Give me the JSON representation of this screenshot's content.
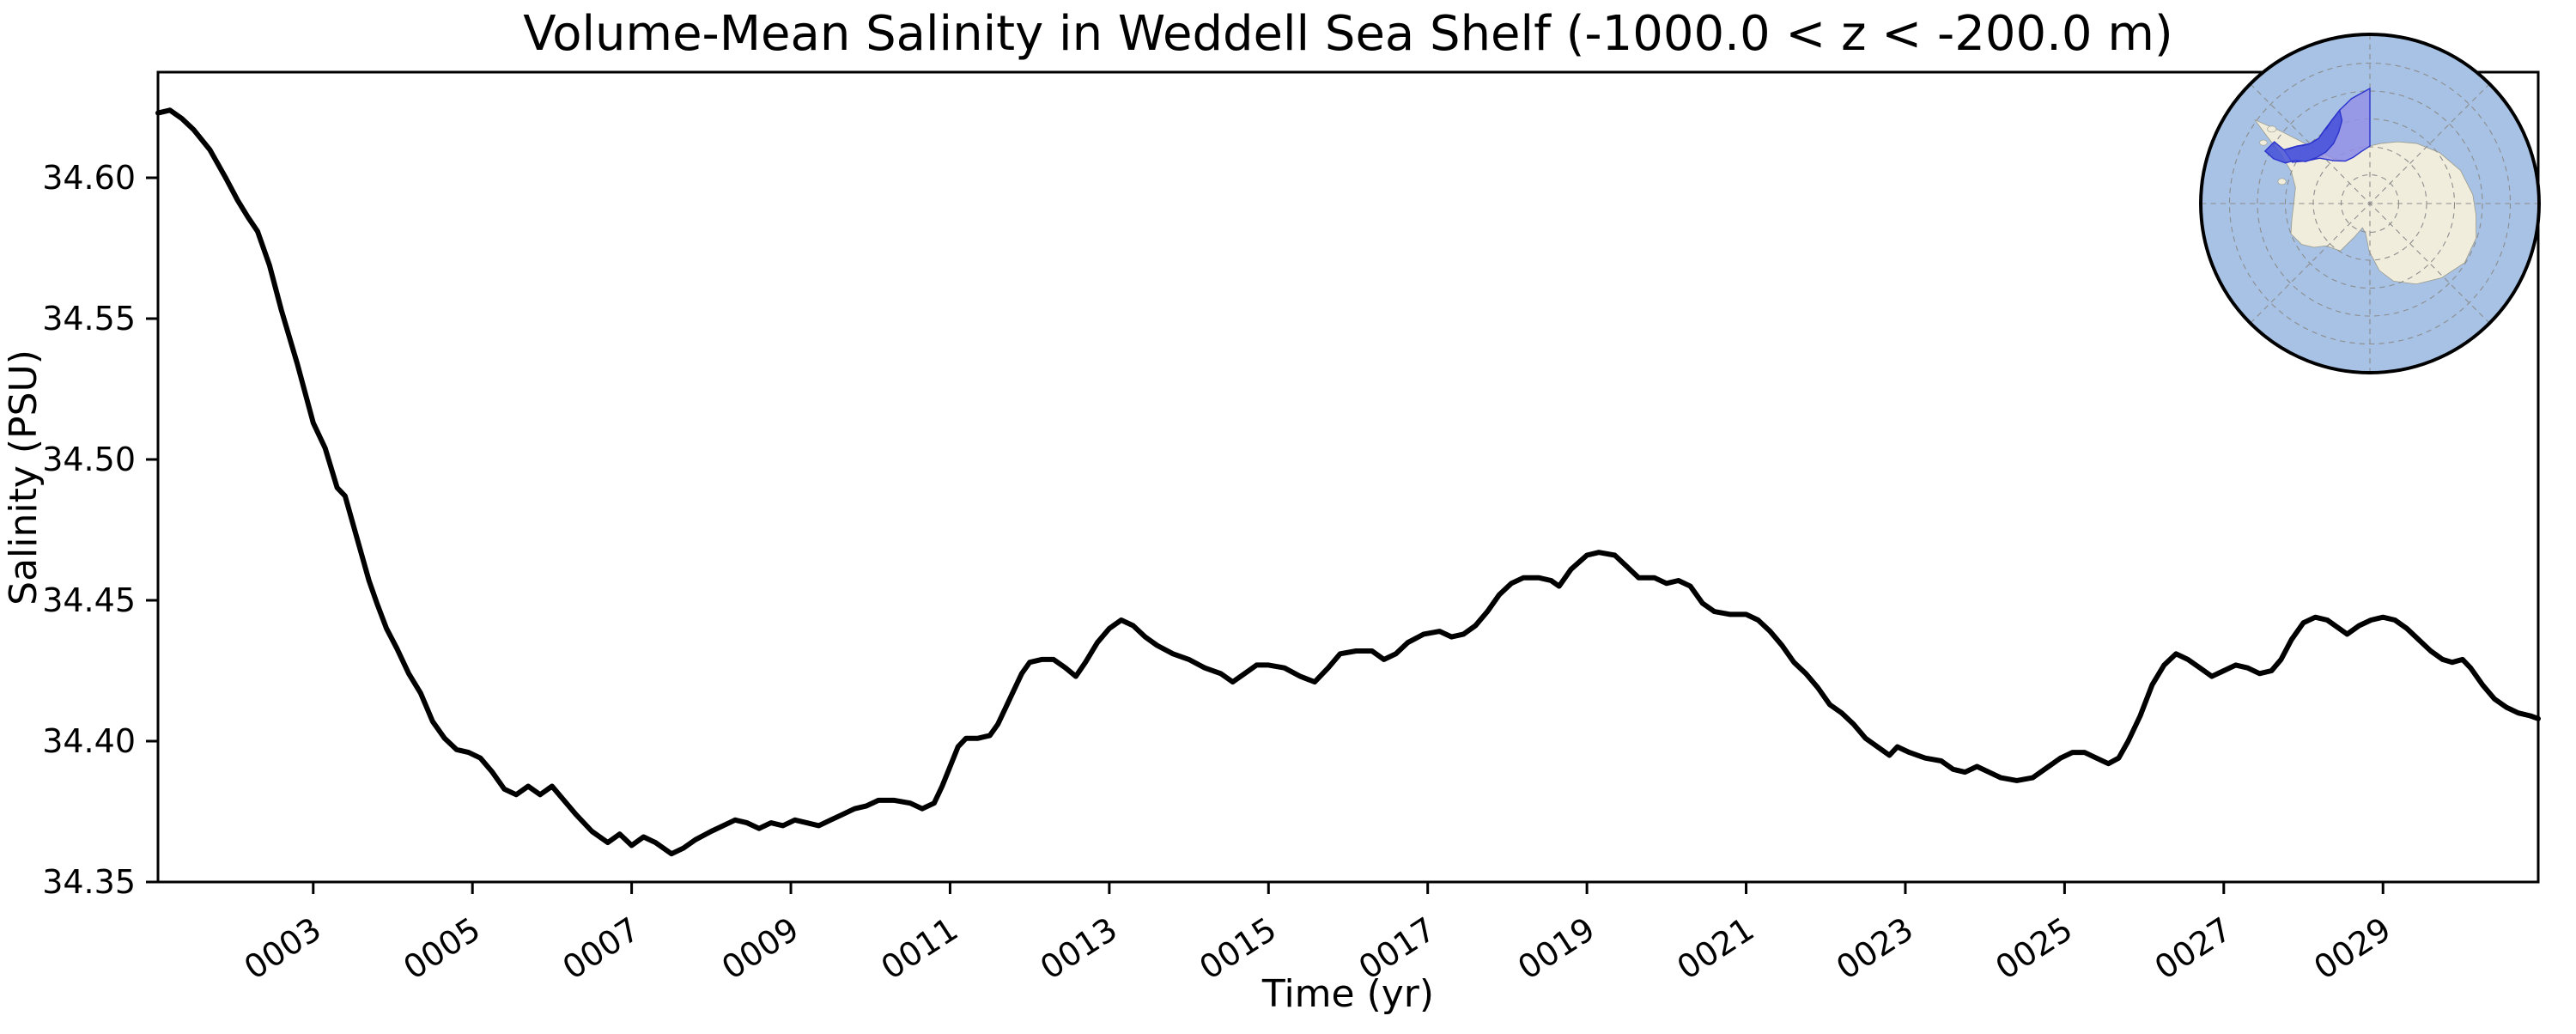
{
  "chart_data": {
    "type": "line",
    "title": "Volume-Mean Salinity in Weddell Sea Shelf (-1000.0 < z < -200.0 m)",
    "xlabel": "Time (yr)",
    "ylabel": "Salinity (PSU)",
    "xlim": [
      1.05,
      30.95
    ],
    "ylim": [
      34.35,
      34.6375
    ],
    "grid": false,
    "legend_position": "none",
    "line_color": "#000000",
    "line_width": 6,
    "x_ticks": [
      {
        "year": 3,
        "label": "0003"
      },
      {
        "year": 5,
        "label": "0005"
      },
      {
        "year": 7,
        "label": "0007"
      },
      {
        "year": 9,
        "label": "0009"
      },
      {
        "year": 11,
        "label": "0011"
      },
      {
        "year": 13,
        "label": "0013"
      },
      {
        "year": 15,
        "label": "0015"
      },
      {
        "year": 17,
        "label": "0017"
      },
      {
        "year": 19,
        "label": "0019"
      },
      {
        "year": 21,
        "label": "0021"
      },
      {
        "year": 23,
        "label": "0023"
      },
      {
        "year": 25,
        "label": "0025"
      },
      {
        "year": 27,
        "label": "0027"
      },
      {
        "year": 29,
        "label": "0029"
      }
    ],
    "y_ticks": [
      {
        "value": 34.35,
        "label": "34.35"
      },
      {
        "value": 34.4,
        "label": "34.40"
      },
      {
        "value": 34.45,
        "label": "34.45"
      },
      {
        "value": 34.5,
        "label": "34.50"
      },
      {
        "value": 34.55,
        "label": "34.55"
      },
      {
        "value": 34.6,
        "label": "34.60"
      }
    ],
    "series": [
      {
        "name": "volume-mean-salinity",
        "x": [
          1.05,
          1.2,
          1.35,
          1.5,
          1.7,
          1.9,
          2.05,
          2.18,
          2.3,
          2.45,
          2.6,
          2.8,
          3.0,
          3.15,
          3.3,
          3.4,
          3.55,
          3.7,
          3.8,
          3.92,
          4.05,
          4.2,
          4.35,
          4.5,
          4.65,
          4.8,
          4.95,
          5.1,
          5.25,
          5.4,
          5.55,
          5.7,
          5.85,
          6.0,
          6.15,
          6.3,
          6.5,
          6.7,
          6.85,
          7.0,
          7.15,
          7.3,
          7.5,
          7.65,
          7.8,
          8.0,
          8.15,
          8.3,
          8.45,
          8.6,
          8.75,
          8.9,
          9.05,
          9.2,
          9.35,
          9.5,
          9.65,
          9.8,
          9.95,
          10.1,
          10.3,
          10.5,
          10.65,
          10.8,
          10.9,
          11.0,
          11.1,
          11.2,
          11.35,
          11.5,
          11.6,
          11.75,
          11.9,
          12.0,
          12.15,
          12.3,
          12.45,
          12.58,
          12.7,
          12.85,
          13.0,
          13.15,
          13.3,
          13.45,
          13.6,
          13.8,
          14.0,
          14.2,
          14.4,
          14.55,
          14.7,
          14.85,
          15.0,
          15.2,
          15.4,
          15.58,
          15.75,
          15.9,
          16.1,
          16.3,
          16.45,
          16.6,
          16.75,
          16.95,
          17.15,
          17.3,
          17.45,
          17.6,
          17.75,
          17.9,
          18.05,
          18.2,
          18.4,
          18.55,
          18.65,
          18.8,
          19.0,
          19.15,
          19.35,
          19.5,
          19.65,
          19.85,
          20.0,
          20.15,
          20.3,
          20.45,
          20.6,
          20.8,
          21.0,
          21.15,
          21.3,
          21.45,
          21.6,
          21.75,
          21.9,
          22.05,
          22.2,
          22.35,
          22.5,
          22.65,
          22.8,
          22.9,
          23.05,
          23.25,
          23.45,
          23.6,
          23.75,
          23.9,
          24.05,
          24.2,
          24.4,
          24.6,
          24.8,
          24.95,
          25.1,
          25.25,
          25.4,
          25.55,
          25.68,
          25.8,
          25.95,
          26.1,
          26.25,
          26.4,
          26.55,
          26.7,
          26.85,
          27.0,
          27.15,
          27.3,
          27.45,
          27.6,
          27.72,
          27.85,
          28.0,
          28.15,
          28.3,
          28.45,
          28.55,
          28.7,
          28.85,
          29.0,
          29.15,
          29.3,
          29.45,
          29.6,
          29.75,
          29.87,
          30.0,
          30.1,
          30.25,
          30.4,
          30.55,
          30.7,
          30.85,
          30.95
        ],
        "y": [
          34.623,
          34.624,
          34.621,
          34.617,
          34.61,
          34.6,
          34.592,
          34.586,
          34.581,
          34.569,
          34.553,
          34.534,
          34.513,
          34.504,
          34.49,
          34.487,
          34.472,
          34.457,
          34.449,
          34.44,
          34.433,
          34.424,
          34.417,
          34.407,
          34.401,
          34.397,
          34.396,
          34.394,
          34.389,
          34.383,
          34.381,
          34.384,
          34.381,
          34.384,
          34.379,
          34.374,
          34.368,
          34.364,
          34.367,
          34.363,
          34.366,
          34.364,
          34.36,
          34.362,
          34.365,
          34.368,
          34.37,
          34.372,
          34.371,
          34.369,
          34.371,
          34.37,
          34.372,
          34.371,
          34.37,
          34.372,
          34.374,
          34.376,
          34.377,
          34.379,
          34.379,
          34.378,
          34.376,
          34.378,
          34.384,
          34.391,
          34.398,
          34.401,
          34.401,
          34.402,
          34.406,
          34.415,
          34.424,
          34.428,
          34.429,
          34.429,
          34.426,
          34.423,
          34.428,
          34.435,
          34.44,
          34.443,
          34.441,
          34.437,
          34.434,
          34.431,
          34.429,
          34.426,
          34.424,
          34.421,
          34.424,
          34.427,
          34.427,
          34.426,
          34.423,
          34.421,
          34.426,
          34.431,
          34.432,
          34.432,
          34.429,
          34.431,
          34.435,
          34.438,
          34.439,
          34.437,
          34.438,
          34.441,
          34.446,
          34.452,
          34.456,
          34.458,
          34.458,
          34.457,
          34.455,
          34.461,
          34.466,
          34.467,
          34.466,
          34.462,
          34.458,
          34.458,
          34.456,
          34.457,
          34.455,
          34.449,
          34.446,
          34.445,
          34.445,
          34.443,
          34.439,
          34.434,
          34.428,
          34.424,
          34.419,
          34.413,
          34.41,
          34.406,
          34.401,
          34.398,
          34.395,
          34.398,
          34.396,
          34.394,
          34.393,
          34.39,
          34.389,
          34.391,
          34.389,
          34.387,
          34.386,
          34.387,
          34.391,
          34.394,
          34.396,
          34.396,
          34.394,
          34.392,
          34.394,
          34.4,
          34.409,
          34.42,
          34.427,
          34.431,
          34.429,
          34.426,
          34.423,
          34.425,
          34.427,
          34.426,
          34.424,
          34.425,
          34.429,
          34.436,
          34.442,
          34.444,
          34.443,
          34.44,
          34.438,
          34.441,
          34.443,
          34.444,
          34.443,
          34.44,
          34.436,
          34.432,
          34.429,
          34.428,
          34.429,
          34.426,
          34.42,
          34.415,
          34.412,
          34.41,
          34.409,
          34.408
        ]
      }
    ]
  },
  "inset_map": {
    "name": "antarctica-polar-inset",
    "description": "South polar stereographic map of Antarctica with the Weddell Sea shelf region highlighted",
    "ocean_color": "#a7c2e4",
    "land_color": "#f0eddc",
    "coast_color": "#9a9a8c",
    "region_fill": "#938fe6",
    "region_fill_opacity": "0.8",
    "region_dark_fill": "#4450d8",
    "region_dark_opacity": "0.85",
    "region_outline": "#2b33cc",
    "graticule_color": "#8c8c8c",
    "border_color": "#000000"
  }
}
